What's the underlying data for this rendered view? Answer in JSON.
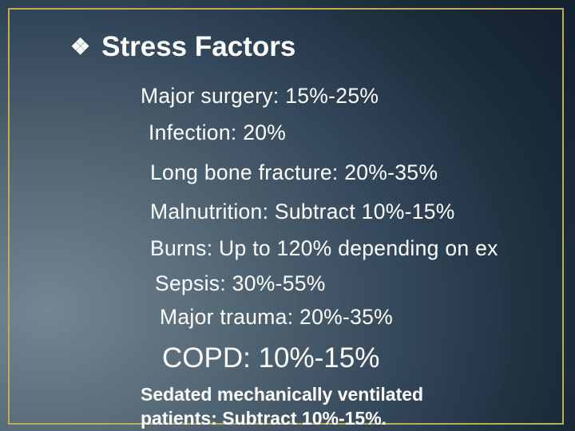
{
  "slide": {
    "title": "Stress Factors",
    "title_bullet_glyph": "❖",
    "frame_color": "#b7b05a",
    "lines": [
      "Major surgery: 15%-25%",
      "Infection: 20%",
      "Long bone fracture: 20%-35%",
      "Malnutrition: Subtract 10%-15%",
      "Burns: Up to 120% depending on ex",
      "Sepsis: 30%-55%",
      "Major trauma: 20%-35%",
      "COPD: 10%-15%",
      "Sedated mechanically ventilated",
      "patients: Subtract 10%-15%."
    ]
  }
}
